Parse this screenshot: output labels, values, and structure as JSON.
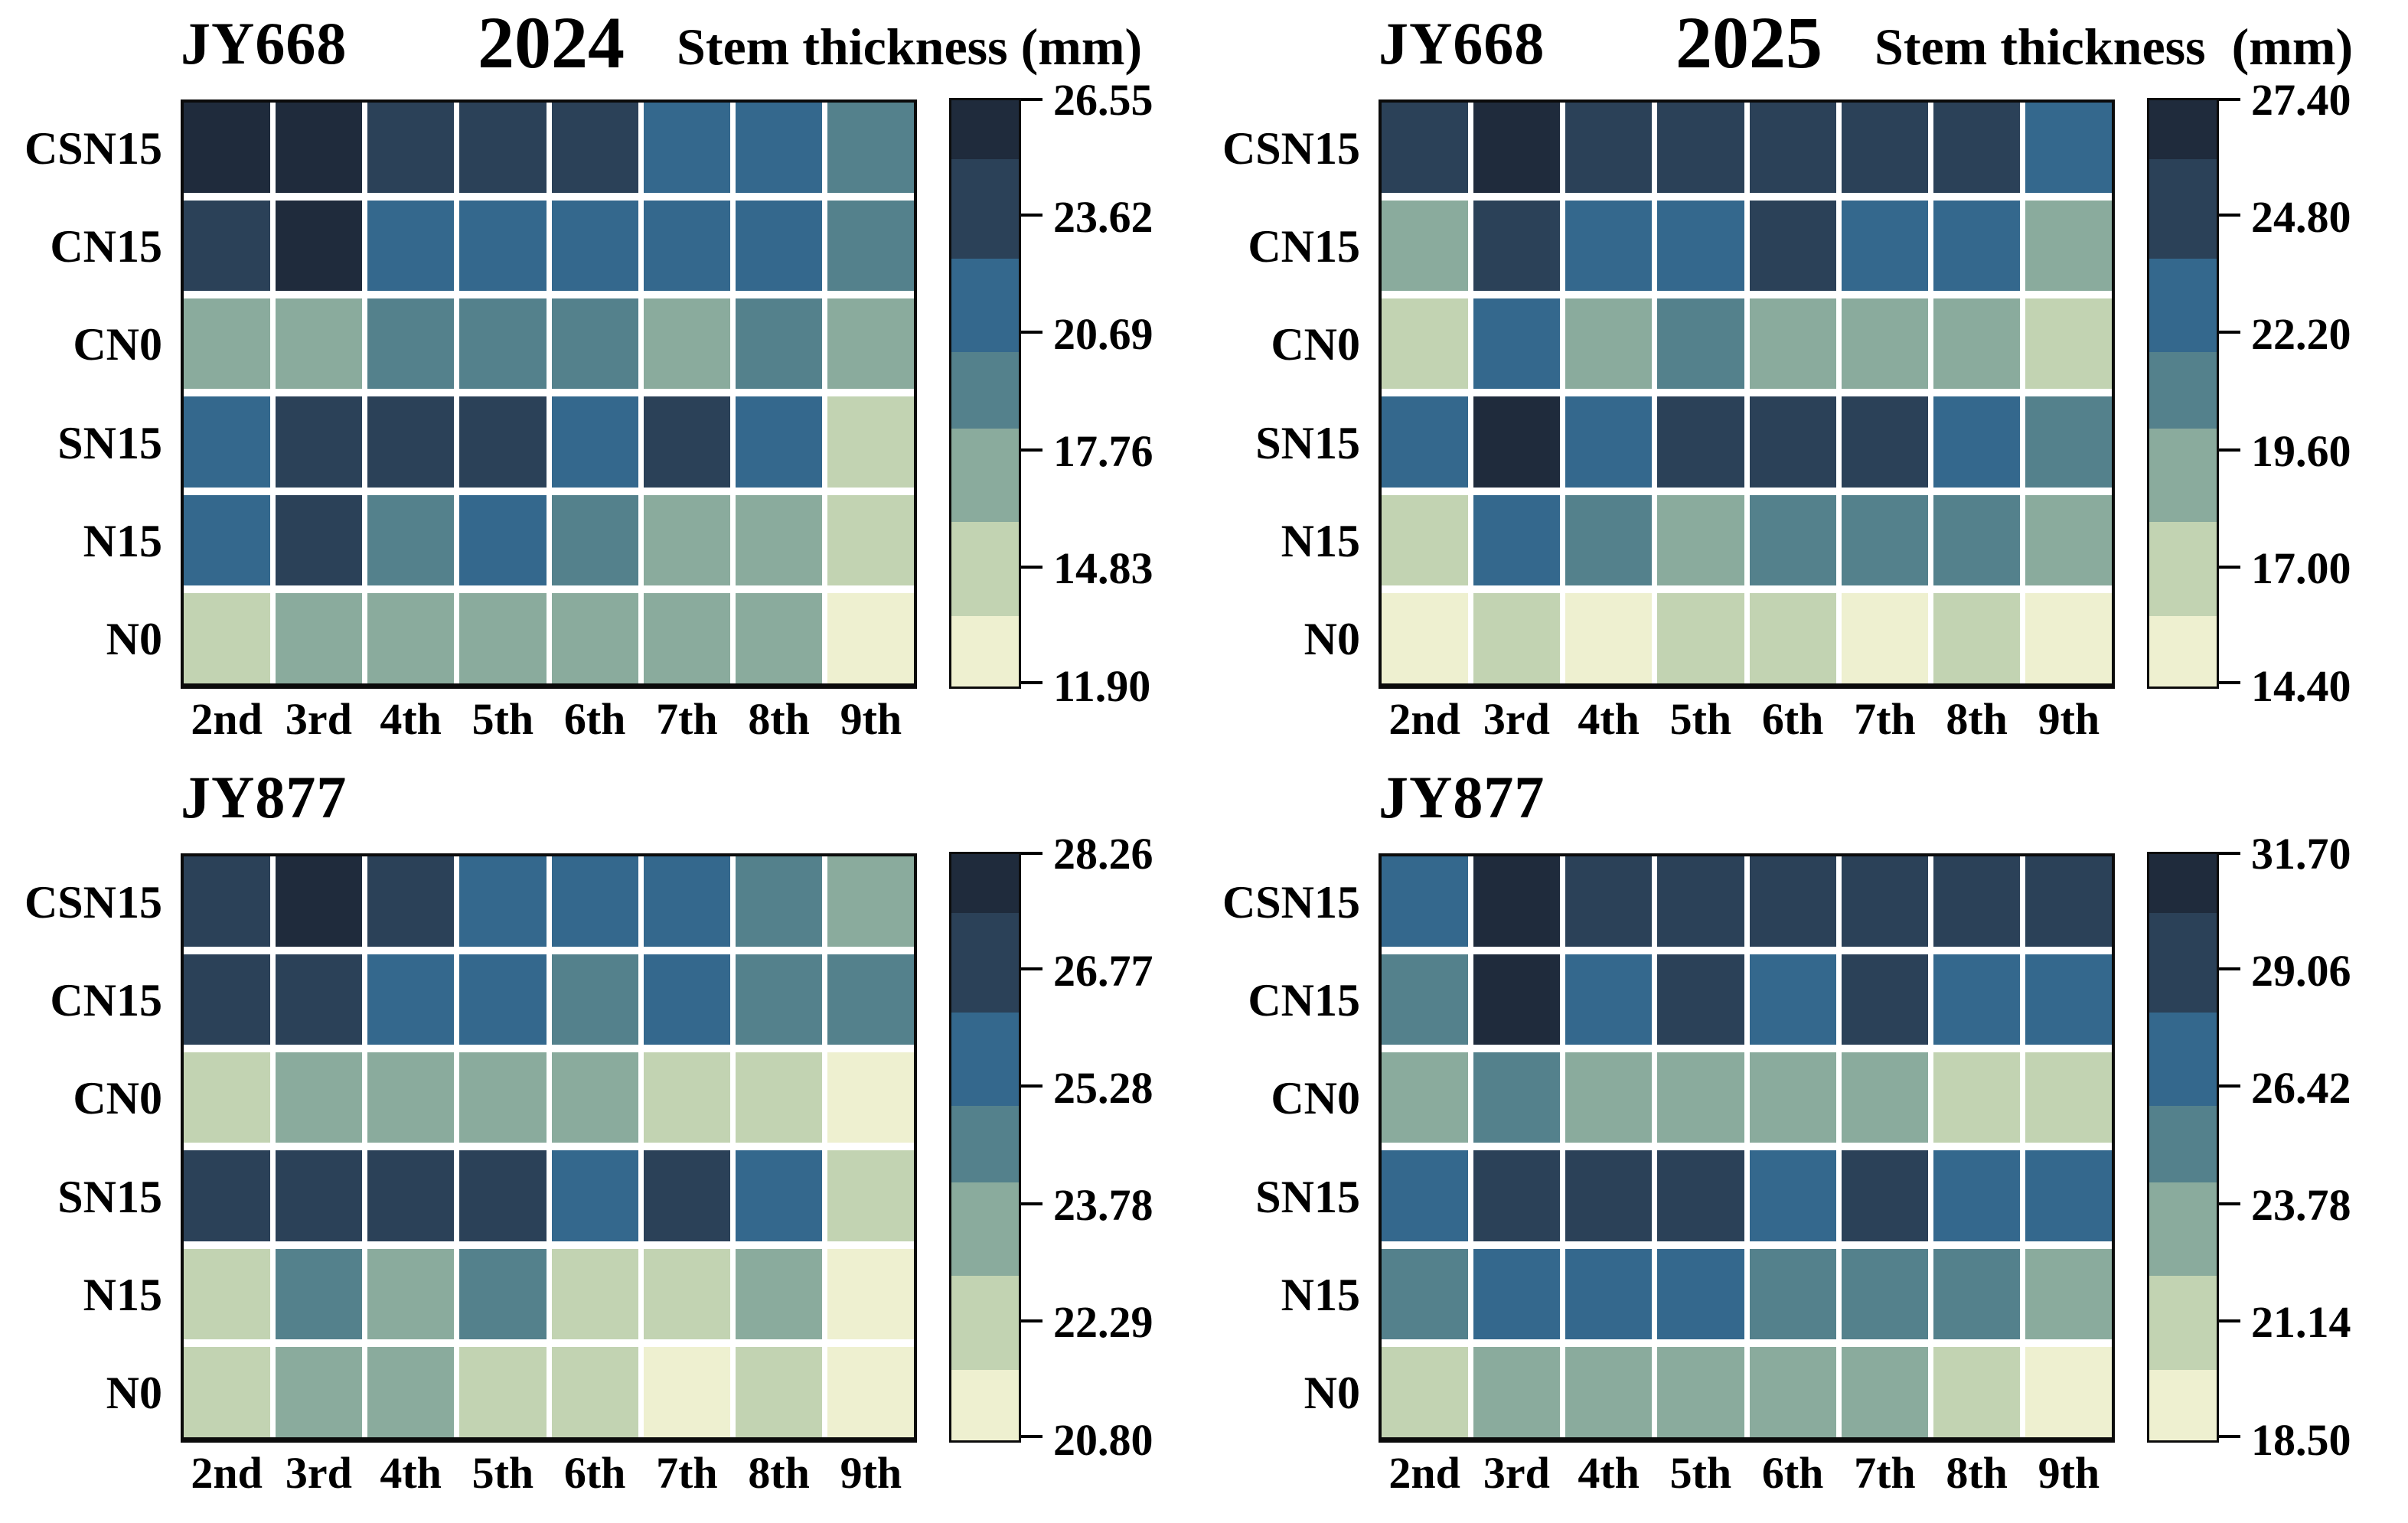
{
  "palette": {
    "colors": [
      "#eef0d0",
      "#c2d3b2",
      "#8aab9d",
      "#54818c",
      "#34688d",
      "#2b4158",
      "#1f2b3c"
    ],
    "breaks_from_top": [
      0.1,
      0.27,
      0.43,
      0.56,
      0.72,
      0.88
    ],
    "grid_line_color": "#ffffff",
    "border_color": "#0b0b0b",
    "text_color": "#000000"
  },
  "chart_data": [
    {
      "type": "heatmap",
      "variety": "JY668",
      "year": "2024",
      "value_label": "Stem thickness (mm)",
      "rows": [
        "CSN15",
        "CN15",
        "CN0",
        "SN15",
        "N15",
        "N0"
      ],
      "cols": [
        "2nd",
        "3rd",
        "4th",
        "5th",
        "6th",
        "7th",
        "8th",
        "9th"
      ],
      "vmax": 26.55,
      "vmin": 11.9,
      "colorbar_ticks": [
        "26.55",
        "23.62",
        "20.69",
        "17.76",
        "14.83",
        "11.90"
      ],
      "values": [
        [
          25.8,
          25.8,
          23.8,
          23.8,
          23.8,
          21.4,
          21.4,
          19.3
        ],
        [
          23.8,
          25.8,
          21.4,
          21.4,
          21.4,
          21.4,
          21.4,
          19.3
        ],
        [
          17.2,
          17.2,
          19.3,
          19.3,
          19.3,
          17.2,
          19.3,
          17.2
        ],
        [
          21.4,
          23.8,
          23.8,
          23.8,
          21.4,
          23.8,
          21.4,
          14.8
        ],
        [
          21.4,
          23.8,
          19.3,
          21.4,
          19.3,
          17.2,
          17.2,
          14.8
        ],
        [
          14.8,
          17.2,
          17.2,
          17.2,
          17.2,
          17.2,
          17.2,
          12.8
        ]
      ]
    },
    {
      "type": "heatmap",
      "variety": "JY668",
      "year": "2025",
      "value_label": "Stem thickness  (mm)",
      "rows": [
        "CSN15",
        "CN15",
        "CN0",
        "SN15",
        "N15",
        "N0"
      ],
      "cols": [
        "2nd",
        "3rd",
        "4th",
        "5th",
        "6th",
        "7th",
        "8th",
        "9th"
      ],
      "vmax": 27.4,
      "vmin": 14.4,
      "colorbar_ticks": [
        "27.40",
        "24.80",
        "22.20",
        "19.60",
        "17.00",
        "14.40"
      ],
      "values": [
        [
          25.0,
          26.8,
          25.0,
          25.0,
          25.0,
          25.0,
          25.0,
          22.9
        ],
        [
          19.1,
          25.0,
          22.9,
          22.9,
          25.0,
          22.9,
          22.9,
          19.1
        ],
        [
          17.0,
          22.9,
          19.1,
          21.0,
          19.1,
          19.1,
          19.1,
          17.0
        ],
        [
          22.9,
          26.8,
          22.9,
          25.0,
          25.0,
          25.0,
          22.9,
          21.0
        ],
        [
          17.0,
          22.9,
          21.0,
          19.1,
          21.0,
          21.0,
          21.0,
          19.1
        ],
        [
          15.2,
          17.0,
          15.2,
          17.0,
          17.0,
          15.2,
          17.0,
          15.2
        ]
      ]
    },
    {
      "type": "heatmap",
      "variety": "JY877",
      "year": "",
      "value_label": "",
      "rows": [
        "CSN15",
        "CN15",
        "CN0",
        "SN15",
        "N15",
        "N0"
      ],
      "cols": [
        "2nd",
        "3rd",
        "4th",
        "5th",
        "6th",
        "7th",
        "8th",
        "9th"
      ],
      "vmax": 28.26,
      "vmin": 20.8,
      "colorbar_ticks": [
        "28.26",
        "26.77",
        "25.28",
        "23.78",
        "22.29",
        "20.80"
      ],
      "values": [
        [
          26.9,
          27.9,
          26.9,
          25.6,
          25.6,
          25.6,
          24.6,
          23.5
        ],
        [
          26.9,
          26.9,
          25.6,
          25.6,
          24.6,
          25.6,
          24.6,
          24.6
        ],
        [
          22.3,
          23.5,
          23.5,
          23.5,
          23.5,
          22.3,
          22.3,
          21.2
        ],
        [
          26.9,
          26.9,
          26.9,
          26.9,
          25.6,
          26.9,
          25.6,
          22.3
        ],
        [
          22.3,
          24.6,
          23.5,
          24.6,
          22.3,
          22.3,
          23.5,
          21.2
        ],
        [
          22.3,
          23.5,
          23.5,
          22.3,
          22.3,
          21.2,
          22.3,
          21.2
        ]
      ]
    },
    {
      "type": "heatmap",
      "variety": "JY877",
      "year": "",
      "value_label": "",
      "rows": [
        "CSN15",
        "CN15",
        "CN0",
        "SN15",
        "N15",
        "N0"
      ],
      "cols": [
        "2nd",
        "3rd",
        "4th",
        "5th",
        "6th",
        "7th",
        "8th",
        "9th"
      ],
      "vmax": 31.7,
      "vmin": 18.5,
      "colorbar_ticks": [
        "31.70",
        "29.06",
        "26.42",
        "23.78",
        "21.14",
        "18.50"
      ],
      "values": [
        [
          27.1,
          31.0,
          29.3,
          29.3,
          29.3,
          29.3,
          29.3,
          29.3
        ],
        [
          25.2,
          31.0,
          27.1,
          29.3,
          27.1,
          29.3,
          27.1,
          27.1
        ],
        [
          23.3,
          25.2,
          23.3,
          23.3,
          23.3,
          23.3,
          21.1,
          21.1
        ],
        [
          27.1,
          29.3,
          29.3,
          29.3,
          27.1,
          29.3,
          27.1,
          27.1
        ],
        [
          25.2,
          27.1,
          27.1,
          27.1,
          25.2,
          25.2,
          25.2,
          23.3
        ],
        [
          21.1,
          23.3,
          23.3,
          23.3,
          23.3,
          23.3,
          21.1,
          19.3
        ]
      ]
    }
  ]
}
